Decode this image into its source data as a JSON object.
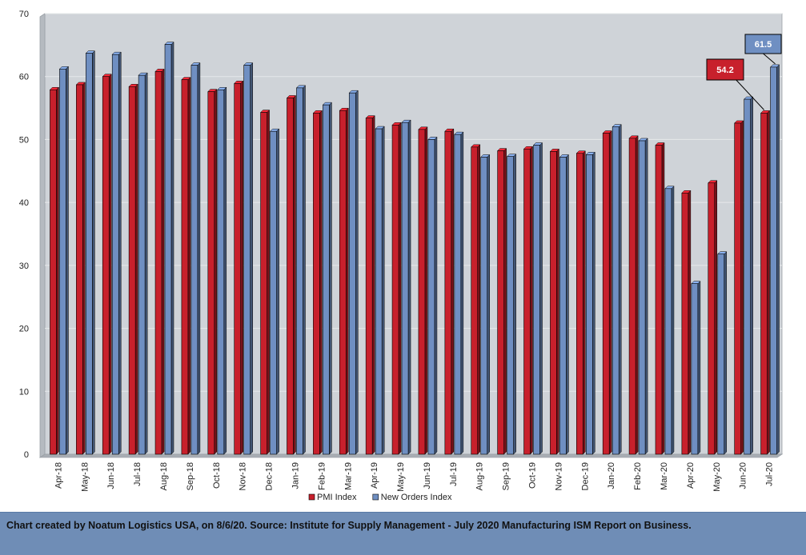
{
  "chart_data": {
    "type": "bar",
    "categories": [
      "Apr-18",
      "May-18",
      "Jun-18",
      "Jul-18",
      "Aug-18",
      "Sep-18",
      "Oct-18",
      "Nov-18",
      "Dec-18",
      "Jan-19",
      "Feb-19",
      "Mar-19",
      "Apr-19",
      "May-19",
      "Jun-19",
      "Jul-19",
      "Aug-19",
      "Sep-19",
      "Oct-19",
      "Nov-19",
      "Dec-19",
      "Jan-20",
      "Feb-20",
      "Mar-20",
      "Apr-20",
      "May-20",
      "Jun-20",
      "Jul-20"
    ],
    "series": [
      {
        "name": "PMI Index",
        "color": "#c8202c",
        "values": [
          57.9,
          58.7,
          60.0,
          58.4,
          60.8,
          59.5,
          57.6,
          58.9,
          54.3,
          56.6,
          54.2,
          54.6,
          53.4,
          52.3,
          51.6,
          51.3,
          48.8,
          48.2,
          48.5,
          48.1,
          47.8,
          51.0,
          50.2,
          49.1,
          41.5,
          43.1,
          52.6,
          54.2
        ]
      },
      {
        "name": "New Orders Index",
        "color": "#6f8fc2",
        "values": [
          61.2,
          63.7,
          63.5,
          60.2,
          65.1,
          61.8,
          57.9,
          61.8,
          51.3,
          58.2,
          55.5,
          57.4,
          51.7,
          52.7,
          50.0,
          50.8,
          47.2,
          47.3,
          49.1,
          47.2,
          47.6,
          52.0,
          49.8,
          42.2,
          27.1,
          31.8,
          56.4,
          61.5
        ]
      }
    ],
    "ylim": [
      0,
      70
    ],
    "yticks": [
      0,
      10,
      20,
      30,
      40,
      50,
      60,
      70
    ],
    "legend_position": "bottom",
    "grid": true,
    "annotations": [
      {
        "series": "PMI Index",
        "category": "Jul-20",
        "text": "54.2",
        "color": "#c8202c"
      },
      {
        "series": "New Orders Index",
        "category": "Jul-20",
        "text": "61.5",
        "color": "#6f8fc2"
      }
    ]
  },
  "footer": {
    "text": "Chart created by Noatum Logistics USA, on 8/6/20. Source: Institute for Supply Management - July 2020 Manufacturing ISM Report on Business."
  }
}
